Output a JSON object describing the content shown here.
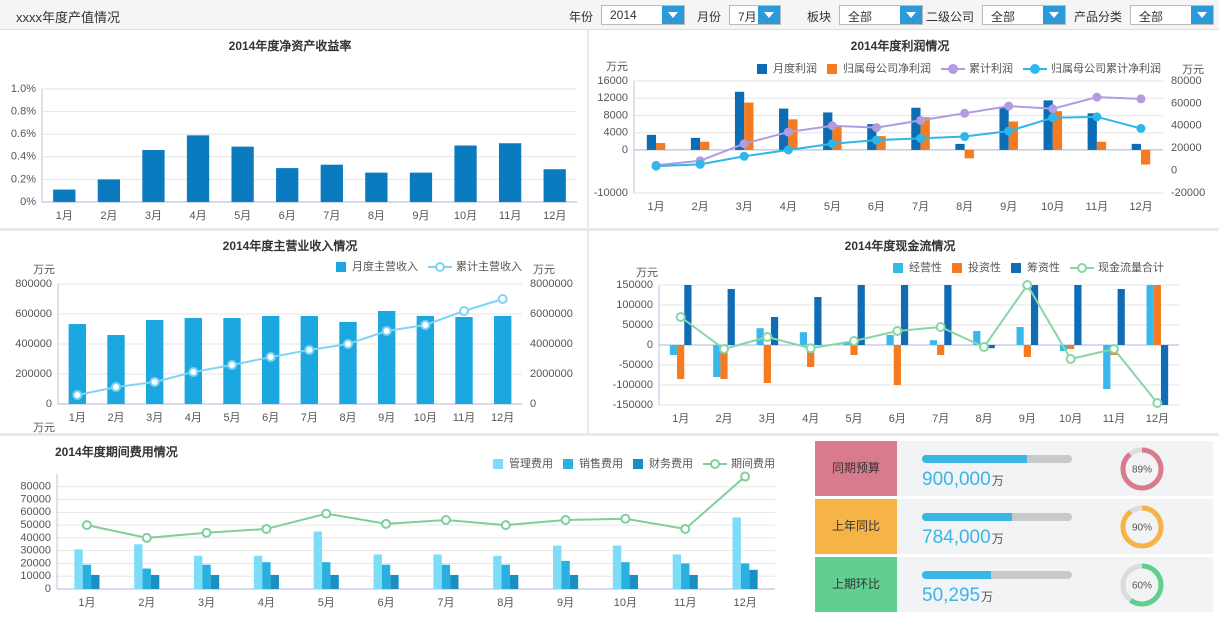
{
  "header": {
    "title": "xxxx年度产值情况",
    "filters": [
      {
        "label": "年份",
        "value": "2014"
      },
      {
        "label": "月份",
        "value": "7月"
      },
      {
        "label": "板块",
        "value": "全部"
      },
      {
        "label": "二级公司",
        "value": "全部"
      },
      {
        "label": "产品分类",
        "value": "全部"
      }
    ]
  },
  "chart_data": [
    {
      "type": "bar",
      "title": "2014年度净资产收益率",
      "categories": [
        "1月",
        "2月",
        "3月",
        "4月",
        "5月",
        "6月",
        "7月",
        "8月",
        "9月",
        "10月",
        "11月",
        "12月"
      ],
      "values": [
        0.11,
        0.2,
        0.46,
        0.59,
        0.49,
        0.3,
        0.33,
        0.26,
        0.26,
        0.5,
        0.52,
        0.29
      ],
      "color": "#0b7bc0",
      "ylim": [
        0,
        1.0
      ],
      "yticks": [
        {
          "value": 0,
          "label": "0%"
        },
        {
          "value": 0.2,
          "label": "0.2%"
        },
        {
          "value": 0.4,
          "label": "0.4%"
        },
        {
          "value": 0.6,
          "label": "0.6%"
        },
        {
          "value": 0.8,
          "label": "0.8%"
        },
        {
          "value": 1.0,
          "label": "1.0%"
        }
      ],
      "grid": true
    },
    {
      "type": "combo",
      "title": "2014年度利润情况",
      "y_unit": "万元",
      "y2_unit": "万元",
      "categories": [
        "1月",
        "2月",
        "3月",
        "4月",
        "5月",
        "6月",
        "7月",
        "8月",
        "9月",
        "10月",
        "11月",
        "12月"
      ],
      "ylim": [
        -10000,
        16000
      ],
      "yticks": [
        -10000,
        0,
        4000,
        8000,
        12000,
        16000
      ],
      "y2lim": [
        -20000,
        80000
      ],
      "y2ticks": [
        -20000,
        0,
        20000,
        40000,
        60000,
        80000
      ],
      "grid": true,
      "legend": "top-right",
      "series": [
        {
          "name": "月度利润",
          "color": "#0c6db4",
          "values": [
            3500,
            2800,
            13500,
            9600,
            8700,
            6000,
            9800,
            1400,
            9800,
            11500,
            8500,
            1400
          ]
        },
        {
          "name": "归属母公司净利润",
          "color": "#f47b20",
          "values": [
            1600,
            1900,
            11000,
            7100,
            5700,
            3200,
            7600,
            -1950,
            6600,
            9000,
            1900,
            -3400
          ]
        },
        {
          "name": "累计利润",
          "color": "#b39be0",
          "type": "line",
          "axis": "y2",
          "marker": "filled",
          "values": [
            4800,
            8800,
            24000,
            34400,
            40000,
            38400,
            44800,
            51200,
            57600,
            55200,
            65600,
            64000
          ]
        },
        {
          "name": "归属母公司累计净利润",
          "color": "#2db7ea",
          "type": "line",
          "axis": "y2",
          "marker": "filled",
          "values": [
            4000,
            5600,
            12800,
            18400,
            24000,
            27200,
            28800,
            30400,
            35200,
            47200,
            48000,
            37600
          ]
        }
      ]
    },
    {
      "type": "combo",
      "title": "2014年度主营业收入情况",
      "y_unit": "万元",
      "y2_unit": "万元",
      "x_unit": "万元",
      "categories": [
        "1月",
        "2月",
        "3月",
        "4月",
        "5月",
        "6月",
        "7月",
        "8月",
        "9月",
        "10月",
        "11月",
        "12月"
      ],
      "ylim": [
        0,
        800000
      ],
      "yticks": [
        0,
        200000,
        400000,
        600000,
        800000
      ],
      "y2lim": [
        0,
        8000000
      ],
      "y2ticks": [
        0,
        2000000,
        4000000,
        6000000,
        8000000
      ],
      "grid": true,
      "legend": "top-right",
      "series": [
        {
          "name": "月度主营收入",
          "color": "#1ba8e0",
          "values": [
            533000,
            460000,
            560000,
            573000,
            573000,
            587000,
            587000,
            547000,
            620000,
            587000,
            580000,
            587000
          ]
        },
        {
          "name": "累计主营收入",
          "color": "#7fd4f3",
          "type": "line",
          "axis": "y2",
          "marker": "open",
          "values": [
            600000,
            1130000,
            1470000,
            2130000,
            2600000,
            3130000,
            3600000,
            4000000,
            4870000,
            5270000,
            6200000,
            7000000
          ]
        }
      ]
    },
    {
      "type": "combo",
      "title": "2014年度现金流情况",
      "y_unit": "万元",
      "categories": [
        "1月",
        "2月",
        "3月",
        "4月",
        "5月",
        "6月",
        "7月",
        "8月",
        "9月",
        "10月",
        "11月",
        "12月"
      ],
      "ylim": [
        -150000,
        150000
      ],
      "yticks": [
        -150000,
        -100000,
        -50000,
        0,
        50000,
        100000,
        150000
      ],
      "grid": true,
      "legend": "top-right",
      "series": [
        {
          "name": "经营性",
          "color": "#39b8ec",
          "values": [
            -25000,
            -80000,
            42000,
            32000,
            5000,
            25000,
            12000,
            35000,
            45000,
            -15000,
            -110000,
            150000
          ]
        },
        {
          "name": "投资性",
          "color": "#f47b20",
          "values": [
            -85000,
            -85000,
            -95000,
            -55000,
            -25000,
            -100000,
            -25000,
            -10000,
            -30000,
            -10000,
            -25000,
            150000
          ]
        },
        {
          "name": "筹资性",
          "color": "#0f6cb5",
          "values": [
            150000,
            140000,
            70000,
            120000,
            150000,
            150000,
            150000,
            -8000,
            150000,
            150000,
            140000,
            -150000
          ]
        },
        {
          "name": "现金流量合计",
          "color": "#86d6a6",
          "type": "line",
          "marker": "open",
          "values": [
            70000,
            -10000,
            20000,
            -8000,
            10000,
            35000,
            45000,
            -5000,
            150000,
            -35000,
            -10000,
            -145000
          ]
        }
      ]
    },
    {
      "type": "combo",
      "title": "2014年度期间费用情况",
      "categories": [
        "1月",
        "2月",
        "3月",
        "4月",
        "5月",
        "6月",
        "7月",
        "8月",
        "9月",
        "10月",
        "11月",
        "12月"
      ],
      "ylim": [
        0,
        90000
      ],
      "yticks": [
        0,
        10000,
        20000,
        30000,
        40000,
        50000,
        60000,
        70000,
        80000
      ],
      "grid": true,
      "legend": "top-right",
      "series": [
        {
          "name": "管理费用",
          "color": "#7ddcf8",
          "values": [
            31000,
            35000,
            26000,
            26000,
            45000,
            27000,
            27000,
            26000,
            34000,
            34000,
            27000,
            56000
          ]
        },
        {
          "name": "销售费用",
          "color": "#29b0e0",
          "values": [
            19000,
            16000,
            19000,
            21000,
            21000,
            19000,
            19000,
            19000,
            22000,
            21000,
            20000,
            20000
          ]
        },
        {
          "name": "财务费用",
          "color": "#1a8fc4",
          "values": [
            11000,
            11000,
            11000,
            11000,
            11000,
            11000,
            11000,
            11000,
            11000,
            11000,
            11000,
            15000
          ]
        },
        {
          "name": "期间费用",
          "color": "#7ecf9a",
          "type": "line",
          "marker": "open",
          "values": [
            50000,
            40000,
            44000,
            47000,
            59000,
            51000,
            54000,
            50000,
            54000,
            55000,
            47000,
            88000
          ]
        }
      ]
    }
  ],
  "kpis": [
    {
      "label": "同期预算",
      "color": "#d97b8c",
      "value": "900,000",
      "unit": "万",
      "bar": 0.7,
      "ring": 89,
      "ring_label": "89%"
    },
    {
      "label": "上年同比",
      "color": "#f6b346",
      "value": "784,000",
      "unit": "万",
      "bar": 0.6,
      "ring": 90,
      "ring_label": "90%"
    },
    {
      "label": "上期环比",
      "color": "#60cf8f",
      "value": "50,295",
      "unit": "万",
      "bar": 0.46,
      "ring": 60,
      "ring_label": "60%"
    }
  ]
}
